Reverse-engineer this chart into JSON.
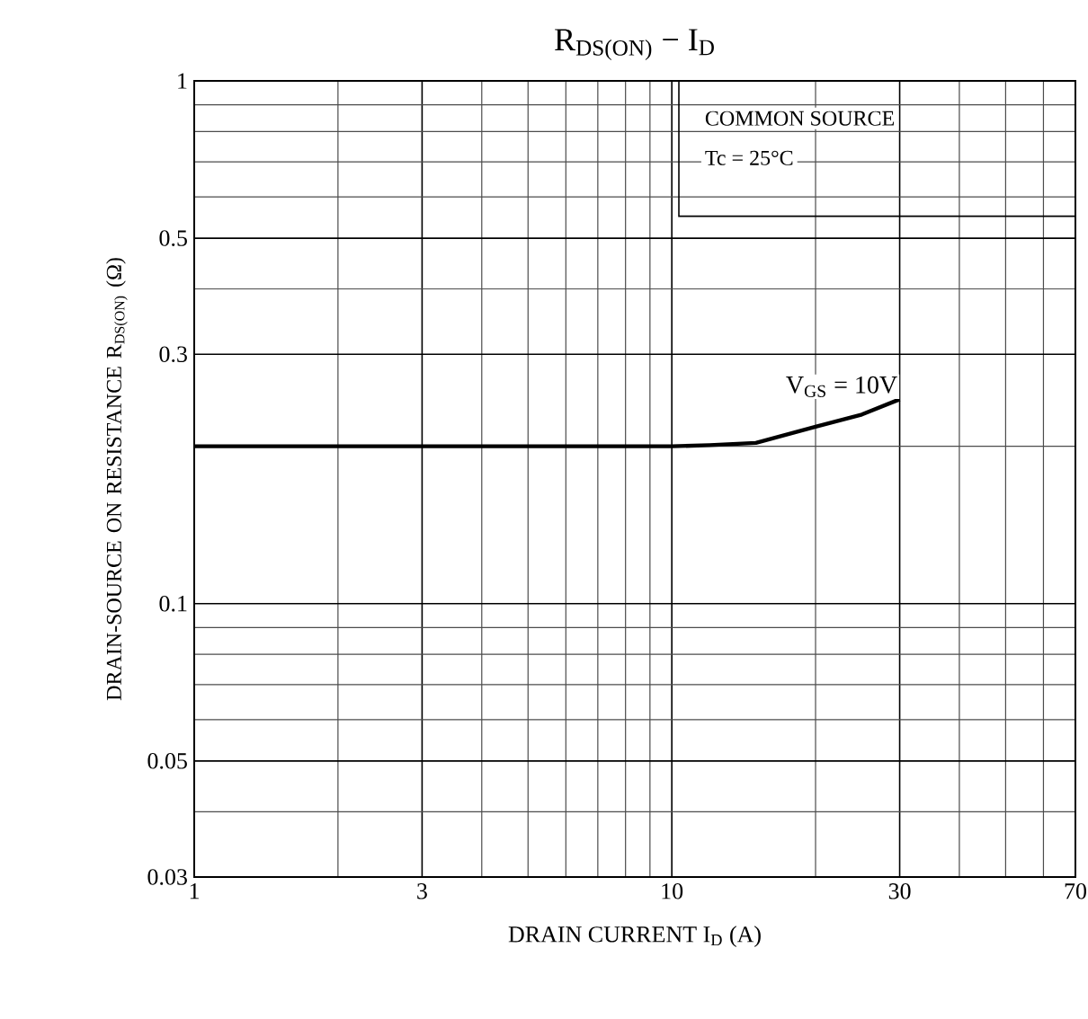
{
  "chart_data": {
    "type": "line",
    "title": "R$_{DS(ON)}$ − I$_{D}$",
    "xlabel": "DRAIN CURRENT  I$_{D}$  (A)",
    "ylabel": "DRAIN-SOURCE ON RESISTANCE R$_{DS(ON)}$  (Ω)",
    "annotations": [
      "COMMON SOURCE",
      "Tc = 25°C"
    ],
    "log": "xy",
    "grid": true,
    "marker": "none",
    "line_style": "solid",
    "xlim": [
      1,
      70
    ],
    "ylim": [
      0.03,
      1
    ],
    "xticks": [
      1,
      3,
      10,
      30,
      70
    ],
    "yticks": [
      0.03,
      0.05,
      0.1,
      0.3,
      0.5,
      1
    ],
    "series": [
      {
        "name": "V$_{GS}$ = 10V",
        "color": "#000000",
        "x": [
          1,
          5,
          10,
          12,
          15,
          20,
          25,
          30
        ],
        "values": [
          0.2,
          0.2,
          0.2,
          0.201,
          0.203,
          0.218,
          0.23,
          0.246
        ]
      }
    ]
  }
}
